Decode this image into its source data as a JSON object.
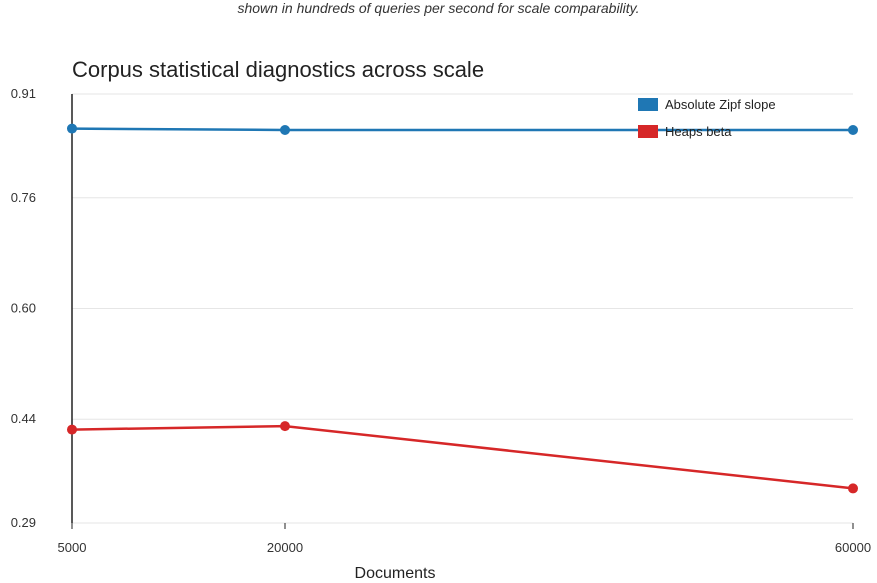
{
  "caption": "shown in hundreds of queries per second for scale comparability.",
  "chart_data": {
    "type": "line",
    "title": "Corpus statistical diagnostics across scale",
    "xlabel": "Documents",
    "ylabel": "",
    "x": [
      5000,
      20000,
      60000
    ],
    "x_ticks": [
      "5000",
      "20000",
      "60000"
    ],
    "y_ticks": [
      "0.91",
      "0.76",
      "0.60",
      "0.44",
      "0.29"
    ],
    "ylim": [
      0.29,
      0.91
    ],
    "xlim": [
      5000,
      60000
    ],
    "grid": true,
    "legend_position": "top-right",
    "series": [
      {
        "name": "Absolute Zipf slope",
        "color": "#1f77b4",
        "values": [
          0.86,
          0.858,
          0.858
        ]
      },
      {
        "name": "Heaps beta",
        "color": "#d62728",
        "values": [
          0.425,
          0.43,
          0.34
        ]
      }
    ]
  }
}
